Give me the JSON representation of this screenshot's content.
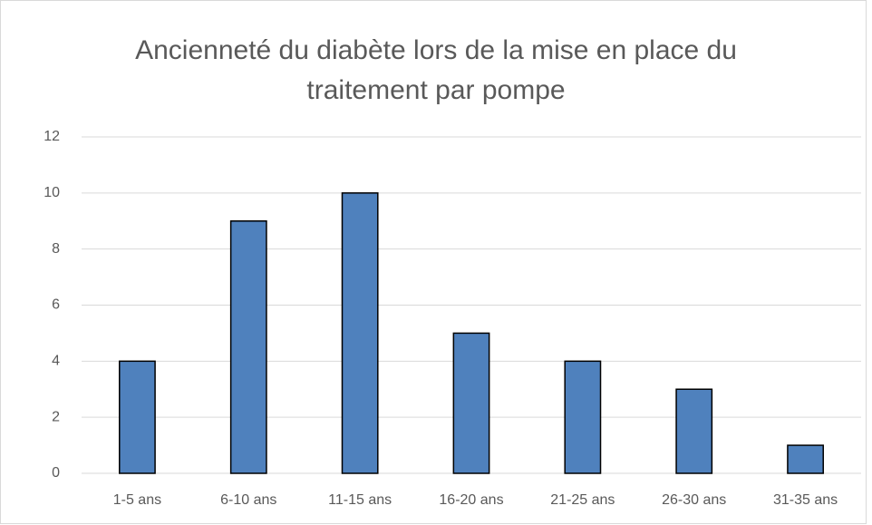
{
  "chart_data": {
    "type": "bar",
    "title": "Ancienneté du diabète lors de la mise en place du traitement par pompe",
    "categories": [
      "1-5 ans",
      "6-10 ans",
      "11-15 ans",
      "16-20 ans",
      "21-25 ans",
      "26-30 ans",
      "31-35 ans"
    ],
    "values": [
      4,
      9,
      10,
      5,
      4,
      3,
      1
    ],
    "color": "#4f81bd",
    "ylim": [
      0,
      12
    ],
    "yticks": [
      0,
      2,
      4,
      6,
      8,
      10,
      12
    ],
    "grid": true
  }
}
